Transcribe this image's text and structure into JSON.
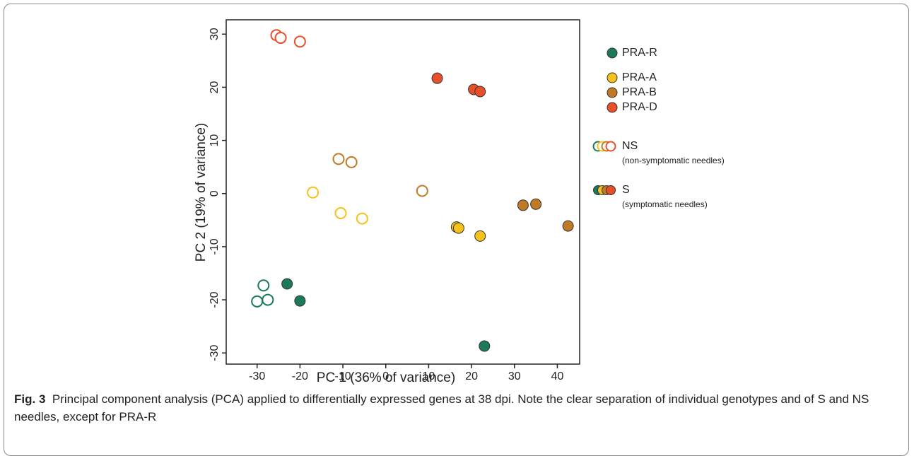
{
  "chart_data": {
    "type": "scatter",
    "xlabel": "PC 1 (36% of variance)",
    "ylabel": "PC 2 (19% of variance)",
    "xlim": [
      -37.2,
      45.2
    ],
    "ylim": [
      -32.1,
      32.7
    ],
    "xticks": [
      -30,
      -20,
      -10,
      0,
      10,
      20,
      30,
      40
    ],
    "yticks": [
      -30,
      -20,
      -10,
      0,
      10,
      20,
      30
    ],
    "series": [
      {
        "name": "PRA-R",
        "color": "#1a7a5a",
        "ns": {
          "x": [
            -28.5,
            -30,
            -27.5
          ],
          "y": [
            -17.3,
            -20.3,
            -20
          ]
        },
        "s": {
          "x": [
            -23,
            -20,
            23
          ],
          "y": [
            -17,
            -20.2,
            -28.7
          ]
        }
      },
      {
        "name": "PRA-A",
        "color": "#f5c21b",
        "ns": {
          "x": [
            -17,
            -10.5,
            -5.5
          ],
          "y": [
            0.2,
            -3.7,
            -4.7
          ]
        },
        "s": {
          "x": [
            16.5,
            17,
            22
          ],
          "y": [
            -6.3,
            -6.5,
            -8
          ]
        }
      },
      {
        "name": "PRA-B",
        "color": "#c07a25",
        "ns": {
          "x": [
            -11,
            -8,
            8.5
          ],
          "y": [
            6.5,
            5.9,
            0.5
          ]
        },
        "s": {
          "x": [
            32,
            35,
            42.5
          ],
          "y": [
            -2.2,
            -2,
            -6.1
          ]
        }
      },
      {
        "name": "PRA-D",
        "color": "#e8502a",
        "ns": {
          "x": [
            -25.5,
            -24.5,
            -20
          ],
          "y": [
            29.8,
            29.3,
            28.6
          ]
        },
        "s": {
          "x": [
            12,
            20.5,
            22
          ],
          "y": [
            21.7,
            19.6,
            19.2
          ]
        }
      }
    ],
    "fill_legend": [
      {
        "label": "NS",
        "note": "(non-symptomatic needles)",
        "filled": false
      },
      {
        "label": "S",
        "note": "(symptomatic needles)",
        "filled": true
      }
    ]
  },
  "caption": {
    "label": "Fig. 3",
    "text": "Principal component analysis (PCA) applied to differentially expressed genes at 38 dpi. Note the clear separation of individual genotypes and of S and NS needles, except for PRA-R"
  }
}
